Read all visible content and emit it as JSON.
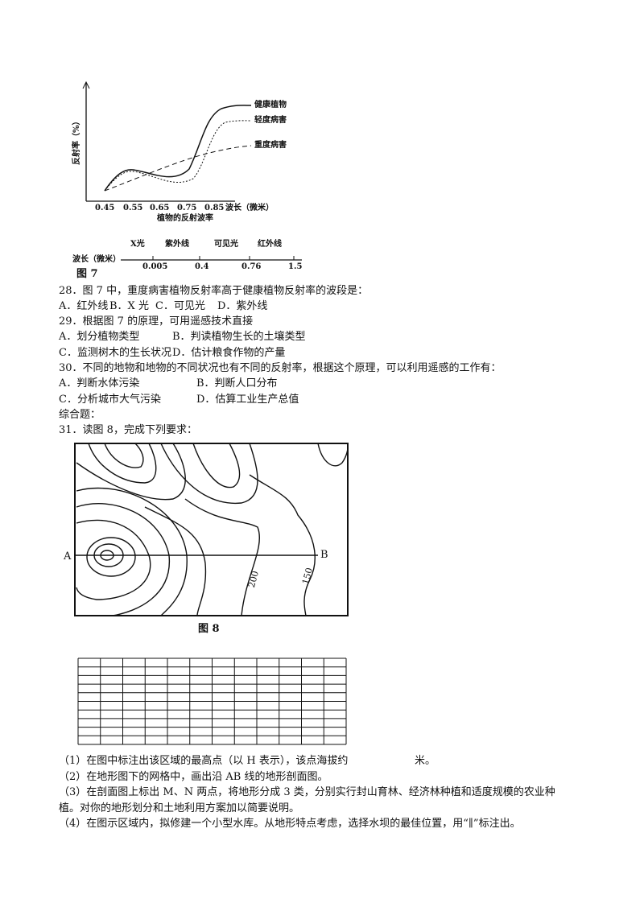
{
  "figure7": {
    "y_axis_label": "反射率（%）",
    "x_axis_label": "波长（微米）",
    "x_ticks": [
      "0.45",
      "0.55",
      "0.65",
      "0.75",
      "0.85"
    ],
    "curve_labels": [
      "健康植物",
      "轻度病害",
      "重度病害"
    ],
    "subtitle": "植物的反射波率",
    "spectrum": {
      "axis_label": "波长（微米）",
      "ticks": [
        "0.005",
        "0.4",
        "0.76",
        "1.5"
      ],
      "bands": [
        "X光",
        "紫外线",
        "可见光",
        "红外线"
      ]
    },
    "caption": "图 7"
  },
  "questions": [
    {
      "stem": "28．图 7 中，重度病害植物反射率高于健康植物反射率的波段是：",
      "options": [
        "A．红外线",
        "B．X 光",
        "C．可见光",
        "D．紫外线"
      ]
    },
    {
      "stem": "29．根据图 7 的原理，可用遥感技术直接",
      "options": [
        "A．划分植物类型",
        "B．判读植物生长的土壤类型",
        "C．监测树木的生长状况",
        "D．估计粮食作物的产量"
      ]
    },
    {
      "stem": "30．不同的地物和地物的不同状况也有不同的反射率，根据这个原理，可以利用遥感的工作有：",
      "options": [
        "A．判断水体污染",
        "B．判断人口分布",
        "C．分析城市大气污染",
        "D．估算工业生产总值"
      ]
    }
  ],
  "section": "综合题：",
  "q31": {
    "stem": "31．读图 8，完成下列要求：",
    "figure8": {
      "point_a": "A",
      "point_b": "B",
      "contour_labels": [
        "200",
        "150"
      ],
      "caption": "图 8"
    },
    "items": [
      [
        "（1）在图中标注出该区域的最高点（以 H 表示），该点海拔约",
        "米。"
      ],
      [
        "（2）在地形图下的网格中，画出沿 AB 线的地形剖面图。"
      ],
      [
        "（3）在剖面图上标出 M、N 两点，将地形分成 3 类，分别实行封山育林、经济林种植和适度规模的农业种",
        "植。对你的地形划分和土地利用方案加以简要说明。"
      ],
      [
        "（4）在图示区域内，拟修建一个小型水库。从地形特点考虑，选择水坝的最佳位置，用“∥”标注出。"
      ]
    ]
  }
}
